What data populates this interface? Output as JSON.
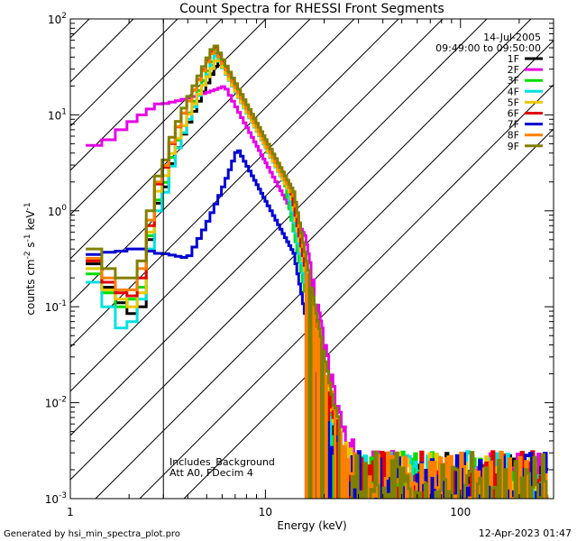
{
  "chart_data": {
    "type": "line",
    "title": "Count Spectra for RHESSI Front Segments",
    "xlabel": "Energy (keV)",
    "ylabel_parts": [
      "counts cm",
      "-2",
      " s",
      "-1",
      " keV",
      "-1"
    ],
    "x_scale": "log",
    "y_scale": "log",
    "xlim": [
      1,
      300
    ],
    "ylim": [
      0.001,
      100
    ],
    "x_ticks": [
      {
        "value": 1,
        "label": "1"
      },
      {
        "value": 10,
        "label": "10"
      },
      {
        "value": 100,
        "label": "100"
      }
    ],
    "y_ticks": [
      {
        "value": 100,
        "base": "10",
        "exp": "2"
      },
      {
        "value": 10,
        "base": "10",
        "exp": "1"
      },
      {
        "value": 1,
        "base": "10",
        "exp": "0"
      },
      {
        "value": 0.1,
        "base": "10",
        "exp": "-1"
      },
      {
        "value": 0.01,
        "base": "10",
        "exp": "-2"
      },
      {
        "value": 0.001,
        "base": "10",
        "exp": "-3"
      }
    ],
    "shaded_region": {
      "x_from": 1,
      "x_to": 3,
      "pattern": "diagonal-hatch"
    },
    "date": "14-Jul-2005",
    "time_range": "09:49:00 to 09:50:00",
    "annotations": [
      "Includes_Background",
      "Att A0, FDecim 4"
    ],
    "series": [
      {
        "name": "1F",
        "color": "#000000",
        "low": [
          0.28,
          0.16,
          0.11,
          0.085,
          0.1,
          0.5,
          1.2
        ],
        "peak": 38,
        "peak_e": 5.8,
        "knee": 13
      },
      {
        "name": "2F",
        "color": "#e600e6",
        "low": [
          4.8,
          5.5,
          7.0,
          8.5,
          10,
          11.5,
          13
        ],
        "peak": 20,
        "peak_e": 6.2,
        "knee": 16
      },
      {
        "name": "3F",
        "color": "#00dd00",
        "low": [
          0.22,
          0.14,
          0.1,
          0.12,
          0.16,
          0.55,
          1.3
        ],
        "peak": 45,
        "peak_e": 5.6,
        "knee": 12.5
      },
      {
        "name": "4F",
        "color": "#00e0e0",
        "low": [
          0.18,
          0.1,
          0.06,
          0.07,
          0.12,
          0.4,
          1.0
        ],
        "peak": 42,
        "peak_e": 5.6,
        "knee": 13
      },
      {
        "name": "5F",
        "color": "#e8c800",
        "low": [
          0.25,
          0.15,
          0.12,
          0.1,
          0.14,
          0.6,
          1.6
        ],
        "peak": 40,
        "peak_e": 5.7,
        "knee": 13.5
      },
      {
        "name": "6F",
        "color": "#e00000",
        "low": [
          0.3,
          0.18,
          0.14,
          0.13,
          0.2,
          0.7,
          1.9
        ],
        "peak": 52,
        "peak_e": 5.5,
        "knee": 13.5
      },
      {
        "name": "7F",
        "color": "#0000d0",
        "low": [
          0.35,
          0.37,
          0.38,
          0.4,
          0.4,
          0.38,
          0.36
        ],
        "peak": 4.5,
        "peak_e": 7.2,
        "knee": 14
      },
      {
        "name": "8F",
        "color": "#ff8000",
        "low": [
          0.32,
          0.2,
          0.15,
          0.15,
          0.25,
          0.8,
          2.0
        ],
        "peak": 50,
        "peak_e": 5.5,
        "knee": 14
      },
      {
        "name": "9F",
        "color": "#808000",
        "low": [
          0.4,
          0.25,
          0.2,
          0.2,
          0.3,
          1.0,
          2.3
        ],
        "peak": 55,
        "peak_e": 5.5,
        "knee": 14
      }
    ]
  },
  "footer": {
    "generated_by": "Generated by hsi_min_spectra_plot.pro",
    "timestamp": "12-Apr-2023 01:47"
  }
}
